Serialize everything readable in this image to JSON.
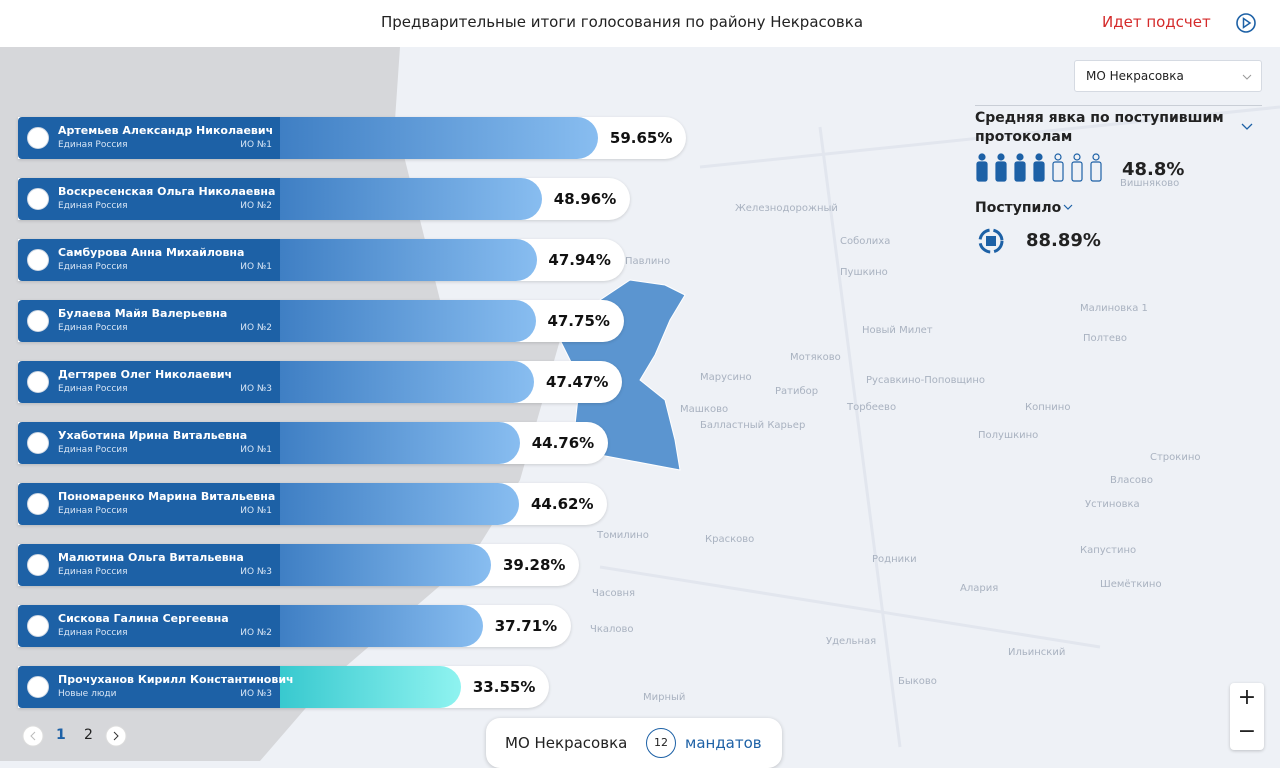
{
  "header": {
    "title": "Предварительные итоги голосования по району Некрасовка",
    "status": "Идет подсчет"
  },
  "candidates": [
    {
      "name": "Артемьев Александр Николаевич",
      "party": "Единая Россия",
      "district": "ИО №1",
      "value": 59.65,
      "value_label": "59.65%"
    },
    {
      "name": "Воскресенская Ольга Николаевна",
      "party": "Единая Россия",
      "district": "ИО №2",
      "value": 48.96,
      "value_label": "48.96%"
    },
    {
      "name": "Самбурова Анна Михайловна",
      "party": "Единая Россия",
      "district": "ИО №1",
      "value": 47.94,
      "value_label": "47.94%"
    },
    {
      "name": "Булаева Майя Валерьевна",
      "party": "Единая Россия",
      "district": "ИО №2",
      "value": 47.75,
      "value_label": "47.75%"
    },
    {
      "name": "Дегтярев Олег Николаевич",
      "party": "Единая Россия",
      "district": "ИО №3",
      "value": 47.47,
      "value_label": "47.47%"
    },
    {
      "name": "Ухаботина Ирина Витальевна",
      "party": "Единая Россия",
      "district": "ИО №1",
      "value": 44.76,
      "value_label": "44.76%"
    },
    {
      "name": "Пономаренко Марина Витальевна",
      "party": "Единая Россия",
      "district": "ИО №1",
      "value": 44.62,
      "value_label": "44.62%"
    },
    {
      "name": "Малютина Ольга Витальевна",
      "party": "Единая Россия",
      "district": "ИО №3",
      "value": 39.28,
      "value_label": "39.28%"
    },
    {
      "name": "Сискова Галина Сергеевна",
      "party": "Единая Россия",
      "district": "ИО №2",
      "value": 37.71,
      "value_label": "37.71%"
    },
    {
      "name": "Прочуханов Кирилл Константинович",
      "party": "Новые люди",
      "district": "ИО №3",
      "value": 33.55,
      "value_label": "33.55%"
    }
  ],
  "pagination": {
    "pages": [
      "1",
      "2"
    ]
  },
  "panel": {
    "select": "МО Некрасовка",
    "turnout_label": "Средняя явка по поступившим протоколам",
    "turnout_value": "48.8%",
    "received_label": "Поступило",
    "received_value": "88.89%"
  },
  "footer": {
    "area": "МО Некрасовка",
    "seats": "12",
    "seats_label": "мандатов"
  },
  "zoom": {
    "in": "+",
    "out": "−"
  },
  "map_labels": [
    "Мотяково",
    "Марусино",
    "Машково",
    "Ратибор",
    "Балластный Карьер",
    "Железнодорожный",
    "Пушкино",
    "Соболиха",
    "Новый Милет",
    "Русавкино-Поповщино",
    "Торбеево",
    "Полушкино",
    "Копнино",
    "Малиновка 1",
    "Полтево",
    "Строкино",
    "Власово",
    "Устиновка",
    "Капустино",
    "Шемёткино",
    "Павлино",
    "Томилино",
    "Красково",
    "Родники",
    "Алария",
    "Часовня",
    "Чкалово",
    "Удельная",
    "Ильинский",
    "Быково",
    "Мирный",
    "Вишняково"
  ]
}
